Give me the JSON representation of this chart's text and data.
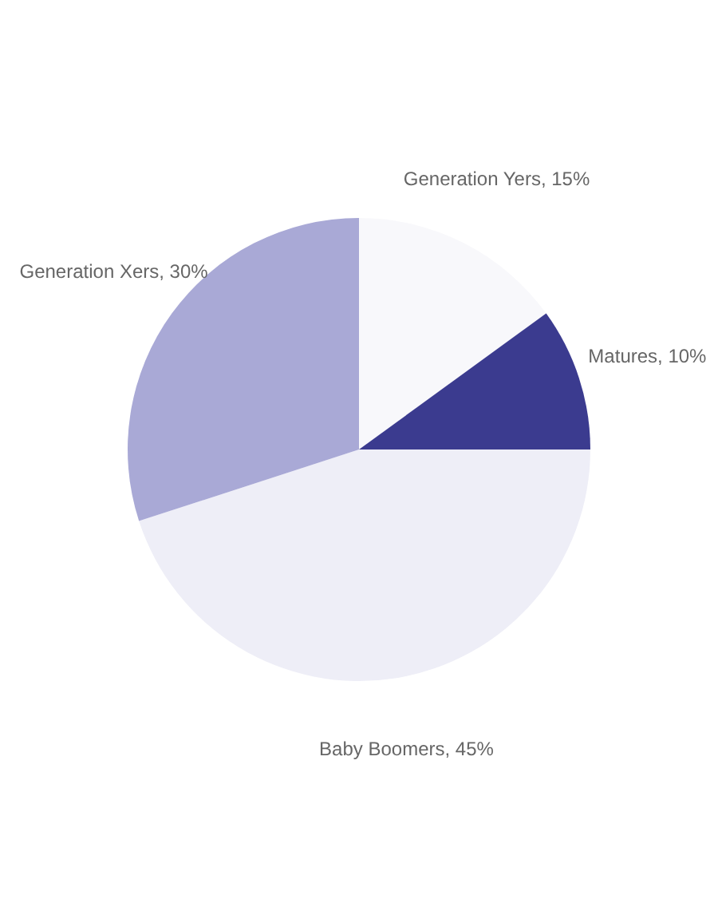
{
  "chart_data": {
    "type": "pie",
    "categories": [
      "Generation Yers",
      "Matures",
      "Baby Boomers",
      "Generation Xers"
    ],
    "values": [
      15,
      10,
      45,
      30
    ],
    "value_labels": [
      "15%",
      "10%",
      "45%",
      "30%"
    ],
    "colors": [
      "#f8f8fb",
      "#3b3b8f",
      "#eeeef7",
      "#a9a9d6"
    ]
  }
}
